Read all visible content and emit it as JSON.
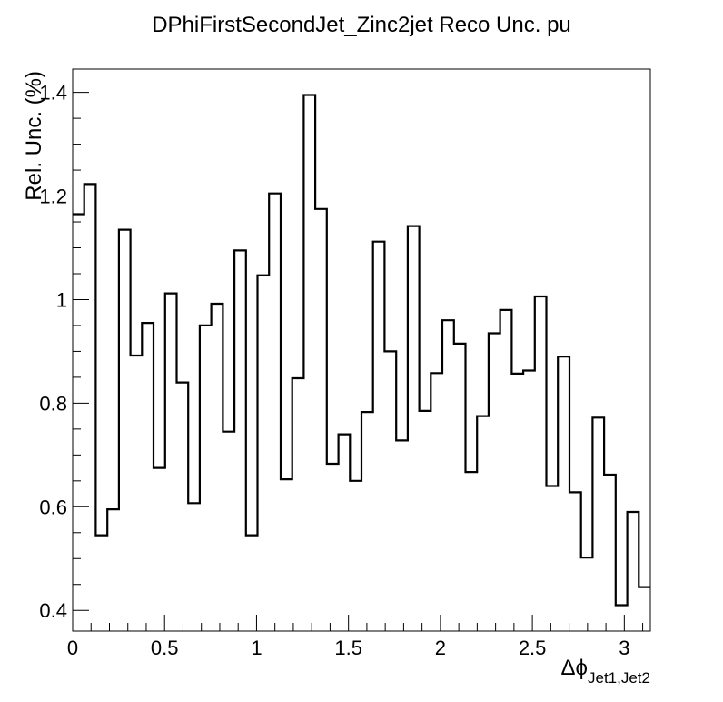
{
  "chart_data": {
    "type": "histogram-step",
    "title": "DPhiFirstSecondJet_Zinc2jet Reco Unc. pu",
    "ylabel": "Rel. Unc. (%)",
    "xlabel_main": "Δϕ",
    "xlabel_sub": "Jet1,Jet2",
    "xlim": [
      0,
      3.1416
    ],
    "ylim": [
      0.36,
      1.445
    ],
    "x_ticks": [
      "0",
      "0.5",
      "1",
      "1.5",
      "2",
      "2.5",
      "3"
    ],
    "x_tick_values": [
      0,
      0.5,
      1,
      1.5,
      2,
      2.5,
      3
    ],
    "y_ticks": [
      "0.4",
      "0.6",
      "0.8",
      "1",
      "1.2",
      "1.4"
    ],
    "y_tick_values": [
      0.4,
      0.6,
      0.8,
      1.0,
      1.2,
      1.4
    ],
    "bin_edges": [
      0,
      0.0628,
      0.1257,
      0.1885,
      0.2513,
      0.3142,
      0.377,
      0.4398,
      0.5027,
      0.5655,
      0.6283,
      0.6912,
      0.754,
      0.8168,
      0.8796,
      0.9425,
      1.0053,
      1.0681,
      1.131,
      1.1938,
      1.2566,
      1.3195,
      1.3823,
      1.4451,
      1.508,
      1.5708,
      1.6336,
      1.6965,
      1.7593,
      1.8221,
      1.885,
      1.9478,
      2.0106,
      2.0735,
      2.1363,
      2.1991,
      2.2619,
      2.3248,
      2.3876,
      2.4504,
      2.5133,
      2.5761,
      2.6389,
      2.7018,
      2.7646,
      2.8274,
      2.8903,
      2.9531,
      3.0159,
      3.0788,
      3.1416
    ],
    "values": [
      1.165,
      1.223,
      0.545,
      0.595,
      1.135,
      0.892,
      0.955,
      0.675,
      1.012,
      0.84,
      0.607,
      0.95,
      0.992,
      0.745,
      1.095,
      0.545,
      1.047,
      1.205,
      0.653,
      0.848,
      1.395,
      1.175,
      0.683,
      0.74,
      0.65,
      0.783,
      1.112,
      0.9,
      0.728,
      1.142,
      0.785,
      0.858,
      0.96,
      0.915,
      0.667,
      0.775,
      0.935,
      0.98,
      0.857,
      0.863,
      1.006,
      0.64,
      0.89,
      0.628,
      0.502,
      0.772,
      0.662,
      0.41,
      0.59,
      0.445
    ],
    "line_color": "#000000"
  }
}
